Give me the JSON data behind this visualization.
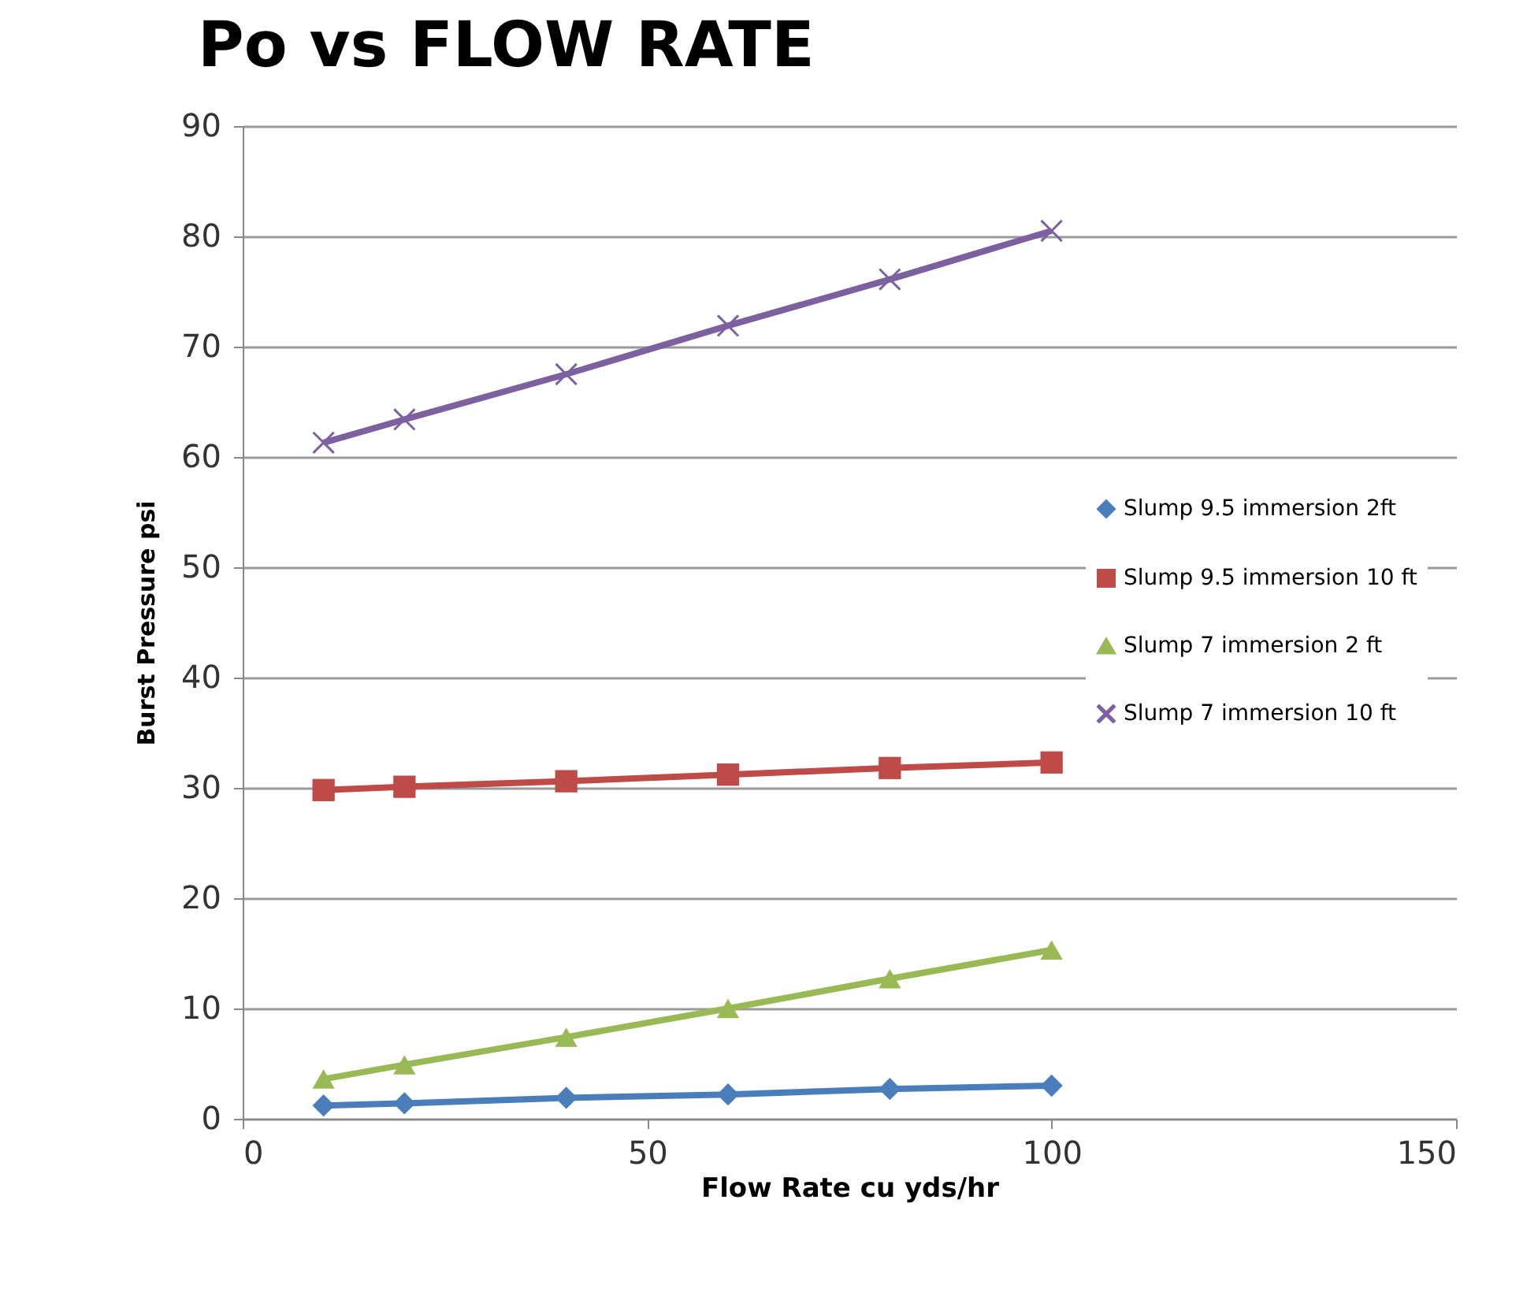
{
  "chart_data": {
    "type": "line",
    "title": "Po vs FLOW RATE",
    "xlabel": "Flow Rate cu yds/hr",
    "ylabel": "Burst Pressure  psi",
    "x": [
      10,
      20,
      40,
      60,
      80,
      100
    ],
    "series": [
      {
        "name": "Slump 9.5  immersion 2ft",
        "color": "#4a7ebb",
        "marker": "diamond",
        "values": [
          1.2,
          1.4,
          1.9,
          2.2,
          2.7,
          3.0
        ]
      },
      {
        "name": "Slump 9.5 immersion 10 ft",
        "color": "#be4b48",
        "marker": "square",
        "values": [
          29.8,
          30.1,
          30.6,
          31.2,
          31.8,
          32.3
        ]
      },
      {
        "name": "Slump 7  immersion 2 ft",
        "color": "#98b954",
        "marker": "triangle",
        "values": [
          3.6,
          4.9,
          7.4,
          10.0,
          12.7,
          15.3
        ]
      },
      {
        "name": "Slump 7 immersion 10 ft",
        "color": "#7d60a0",
        "marker": "cross",
        "values": [
          61.3,
          63.4,
          67.5,
          71.9,
          76.1,
          80.5
        ]
      }
    ],
    "xlim": [
      0,
      150
    ],
    "xticks": [
      0,
      50,
      100,
      150
    ],
    "ylim": [
      0,
      90
    ],
    "yticks": [
      0,
      10,
      20,
      30,
      40,
      50,
      60,
      70,
      80,
      90
    ],
    "grid": "y",
    "legend": "right",
    "line_style": "solid"
  }
}
